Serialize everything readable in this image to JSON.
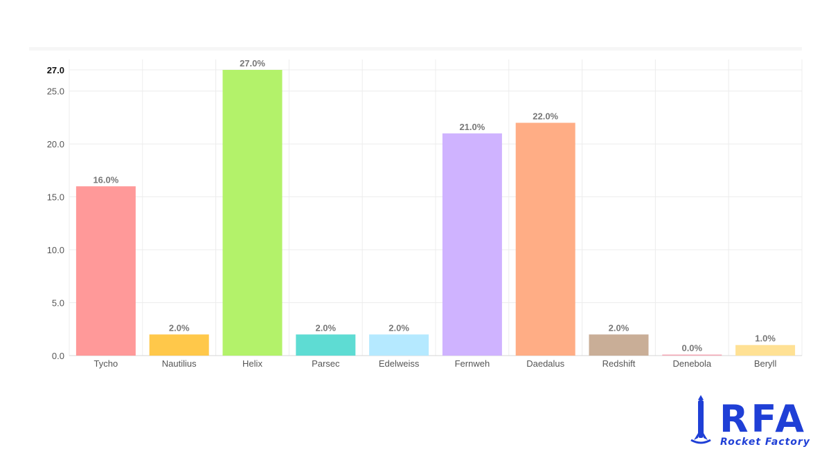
{
  "chart_data": {
    "type": "bar",
    "categories": [
      "Tycho",
      "Nautilius",
      "Helix",
      "Parsec",
      "Edelweiss",
      "Fernweh",
      "Daedalus",
      "Redshift",
      "Denebola",
      "Beryll"
    ],
    "values": [
      16.0,
      2.0,
      27.0,
      2.0,
      2.0,
      21.0,
      22.0,
      2.0,
      0.0,
      1.0
    ],
    "value_labels": [
      "16.0%",
      "2.0%",
      "27.0%",
      "2.0%",
      "2.0%",
      "21.0%",
      "22.0%",
      "2.0%",
      "0.0%",
      "1.0%"
    ],
    "colors": [
      "#ff9999",
      "#ffc84a",
      "#b3f26a",
      "#5edcd3",
      "#b5e9ff",
      "#cfb3ff",
      "#ffad85",
      "#c9ae97",
      "#f4a6b4",
      "#ffe194"
    ],
    "ylim": [
      0,
      27
    ],
    "y_ticks": [
      0,
      5,
      10,
      15,
      20,
      25,
      27
    ],
    "y_tick_labels": [
      "0.0",
      "5.0",
      "10.0",
      "15.0",
      "20.0",
      "25.0",
      "27.0"
    ],
    "grid": true,
    "title": "",
    "xlabel": "",
    "ylabel": ""
  },
  "logo": {
    "wordmark": "RFA",
    "tagline": "Rocket Factory",
    "color": "#1f3fd6"
  }
}
